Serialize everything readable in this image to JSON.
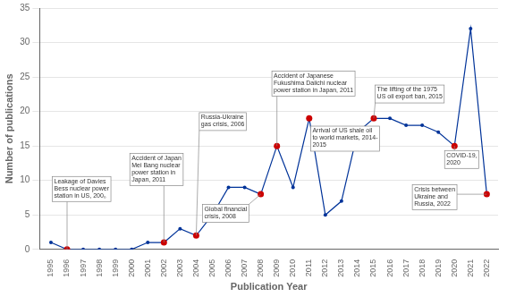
{
  "chart_data": {
    "type": "line",
    "x": [
      1995,
      1996,
      1997,
      1998,
      1999,
      2000,
      2001,
      2002,
      2003,
      2004,
      2005,
      2006,
      2007,
      2008,
      2009,
      2010,
      2011,
      2012,
      2013,
      2014,
      2015,
      2016,
      2017,
      2018,
      2019,
      2020,
      2021,
      2022
    ],
    "values": [
      1,
      0,
      0,
      0,
      0,
      0,
      1,
      1,
      3,
      2,
      5,
      9,
      9,
      8,
      15,
      9,
      19,
      5,
      7,
      17,
      19,
      19,
      18,
      18,
      17,
      15,
      32,
      8
    ],
    "color": "#003399",
    "colors": [
      "#003399",
      "#cc0000",
      "#003399",
      "#003399",
      "#003399",
      "#003399",
      "#003399",
      "#cc0000",
      "#003399",
      "#cc0000",
      "#003399",
      "#003399",
      "#003399",
      "#cc0000",
      "#cc0000",
      "#003399",
      "#cc0000",
      "#003399",
      "#003399",
      "#cc0000",
      "#cc0000",
      "#003399",
      "#003399",
      "#003399",
      "#003399",
      "#cc0000",
      "#003399",
      "#cc0000"
    ],
    "marker": "circle",
    "xlabel": "Publication Year",
    "ylabel": "Number of publications",
    "xlim": [
      1994.3,
      2022.7
    ],
    "xticks": [
      1995,
      1996,
      1997,
      1998,
      1999,
      2000,
      2001,
      2002,
      2003,
      2004,
      2005,
      2006,
      2007,
      2008,
      2009,
      2010,
      2011,
      2012,
      2013,
      2014,
      2015,
      2016,
      2017,
      2018,
      2019,
      2020,
      2021,
      2022
    ],
    "ylim": [
      0,
      35
    ],
    "yticks": [
      0,
      5,
      10,
      15,
      20,
      25,
      30,
      35
    ],
    "grid": "y",
    "legend": false,
    "annotations": [
      {
        "text": "Leakage of Davies\nBess nuclear power\nstation in US, 200₀",
        "x": 1996,
        "y": 0,
        "text_x": 1995.2,
        "text_y": 7.2
      },
      {
        "text": "Accident of Japan\nMei Bang nuclear\npower station in\nJapan, 2011",
        "x": 2002,
        "y": 1,
        "text_x": 2000.0,
        "text_y": 9.5
      },
      {
        "text": "Russia-Ukraine\ngas crisis, 2006",
        "x": 2004,
        "y": 2,
        "text_x": 2004.3,
        "text_y": 17.5
      },
      {
        "text": "Global financial\ncrisis, 2008",
        "x": 2008,
        "y": 8,
        "text_x": 2004.5,
        "text_y": 4.2
      },
      {
        "text": "Accident of Japanese\nFukushima Daiichi nuclear\npower station in Japan, 2011",
        "x": 2009,
        "y": 15,
        "text_x": 2008.8,
        "text_y": 22.5
      },
      {
        "text": "Arrival of US shale oil\nto world markets, 2014-\n2015",
        "x": 2014,
        "y": 17,
        "text_x": 2011.2,
        "text_y": 14.5
      },
      {
        "text": "The lifting of the 1975\nUS oil export ban, 2015",
        "x": 2015,
        "y": 19,
        "text_x": 2015.2,
        "text_y": 21.5
      },
      {
        "text": "COVID-19,\n2020",
        "x": 2020,
        "y": 15,
        "text_x": 2019.5,
        "text_y": 12.0
      },
      {
        "text": "Crisis between\nUkraine and\nRussia, 2022",
        "x": 2022,
        "y": 8,
        "text_x": 2017.5,
        "text_y": 6.0
      }
    ]
  }
}
